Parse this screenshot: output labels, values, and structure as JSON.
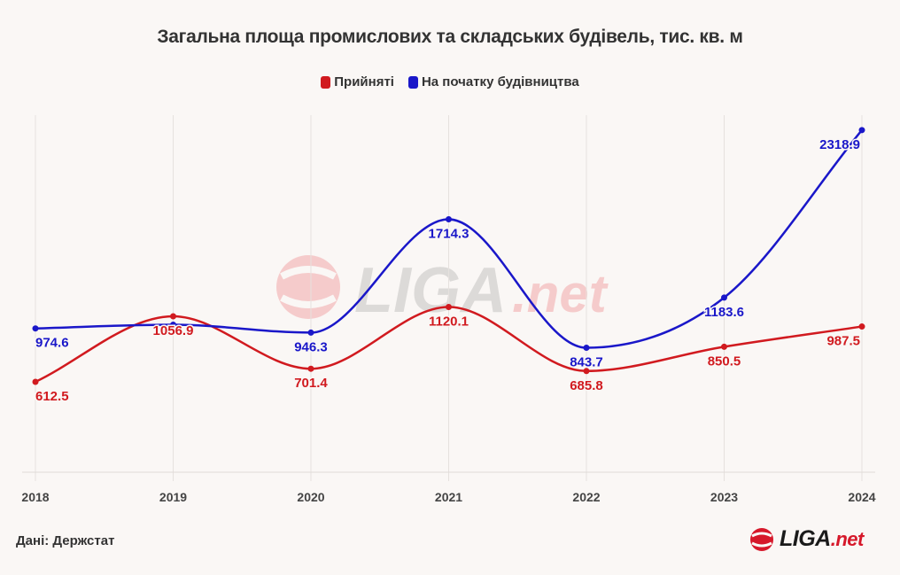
{
  "chart_data": {
    "type": "line",
    "title": "Загальна площа промислових та складських будівель, тис. кв. м",
    "x": [
      "2018",
      "2019",
      "2020",
      "2021",
      "2022",
      "2023",
      "2024"
    ],
    "series": [
      {
        "name": "Прийняті",
        "color": "#d11a1f",
        "values": [
          612.5,
          1056.9,
          701.4,
          1120.1,
          685.8,
          850.5,
          987.5
        ]
      },
      {
        "name": "На початку будівництва",
        "color": "#1a17c9",
        "values": [
          974.6,
          1000.0,
          946.3,
          1714.3,
          843.7,
          1183.6,
          2318.9
        ]
      }
    ],
    "series_labels_shown": [
      [
        true,
        true,
        true,
        true,
        true,
        true,
        true
      ],
      [
        true,
        false,
        true,
        true,
        true,
        true,
        true
      ]
    ],
    "xlabel": "",
    "ylabel": "",
    "ylim": [
      0,
      2420
    ],
    "grid": "vertical",
    "legend": "top-center"
  },
  "source": "Дані: Держстат",
  "logo": {
    "main": "LIGA",
    "suffix": ".net"
  }
}
